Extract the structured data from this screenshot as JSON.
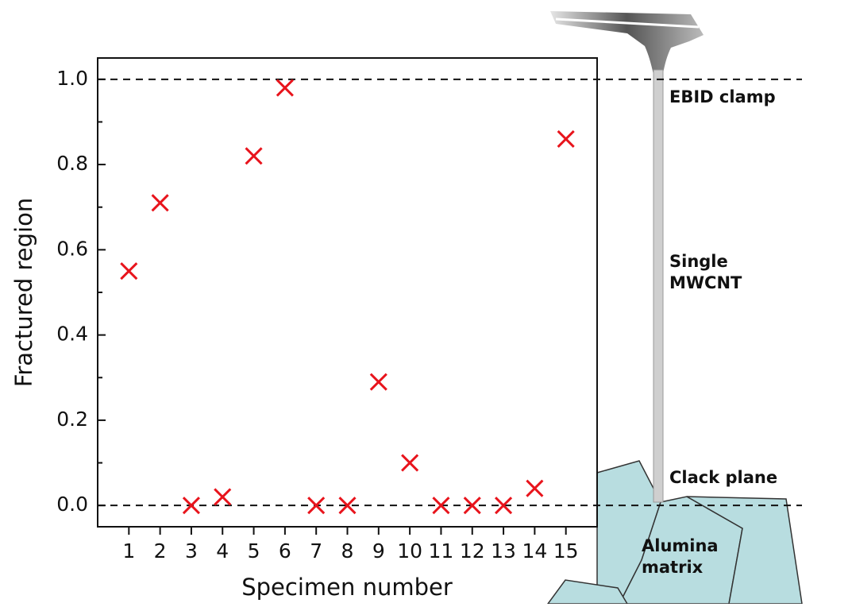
{
  "chart_data": {
    "type": "scatter",
    "x_label": "Specimen number",
    "y_label": "Fractured region",
    "x": [
      1,
      2,
      3,
      4,
      5,
      6,
      7,
      8,
      9,
      10,
      11,
      12,
      13,
      14,
      15
    ],
    "values": [
      0.55,
      0.71,
      0,
      0.02,
      0.82,
      0.98,
      0,
      0,
      0.29,
      0.1,
      0,
      0,
      0,
      0.04,
      0.86
    ],
    "color": "#e8141c",
    "marker": "x",
    "xlim": [
      0,
      16
    ],
    "xticks": [
      1,
      2,
      3,
      4,
      5,
      6,
      7,
      8,
      9,
      10,
      11,
      12,
      13,
      14,
      15
    ],
    "ylim": [
      -0.05,
      1.05
    ],
    "yticks": [
      {
        "value": 0,
        "label": "0.0"
      },
      0.2,
      0.4,
      0.6,
      0.8,
      {
        "value": 1,
        "label": "1.0"
      }
    ],
    "hlines": [
      0,
      1
    ],
    "annotations": [
      {
        "lines": [
          "EBID clamp"
        ]
      },
      {
        "lines": [
          "Single",
          "MWCNT"
        ]
      },
      {
        "lines": [
          "Clack plane"
        ]
      },
      {
        "lines": [
          "Alumina",
          "matrix"
        ]
      }
    ]
  }
}
